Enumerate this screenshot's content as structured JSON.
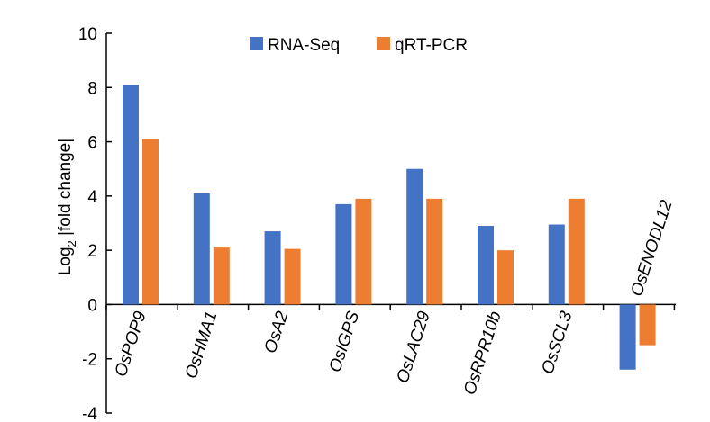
{
  "chart_data": {
    "type": "bar",
    "categories": [
      "OsPOP9",
      "OsHMA1",
      "OsA2",
      "OsIGPS",
      "OsLAC29",
      "OsRPR10b",
      "OsSCL3",
      "OsENODL12"
    ],
    "series": [
      {
        "name": "RNA-Seq",
        "color": "#4472C4",
        "values": [
          8.1,
          4.1,
          2.7,
          3.7,
          5.0,
          2.9,
          2.95,
          -2.4
        ]
      },
      {
        "name": "qRT-PCR",
        "color": "#ED7D31",
        "values": [
          6.1,
          2.1,
          2.05,
          3.9,
          3.9,
          2.0,
          3.9,
          -1.5
        ]
      }
    ],
    "ylabel": {
      "main": "Log",
      "sub": "2",
      "rest": " |fold change|"
    },
    "ylim": [
      -4,
      10
    ],
    "yticks": [
      "-4",
      "-2",
      "0",
      "2",
      "4",
      "6",
      "8",
      "10"
    ],
    "grid": false,
    "legend_position": "top"
  }
}
